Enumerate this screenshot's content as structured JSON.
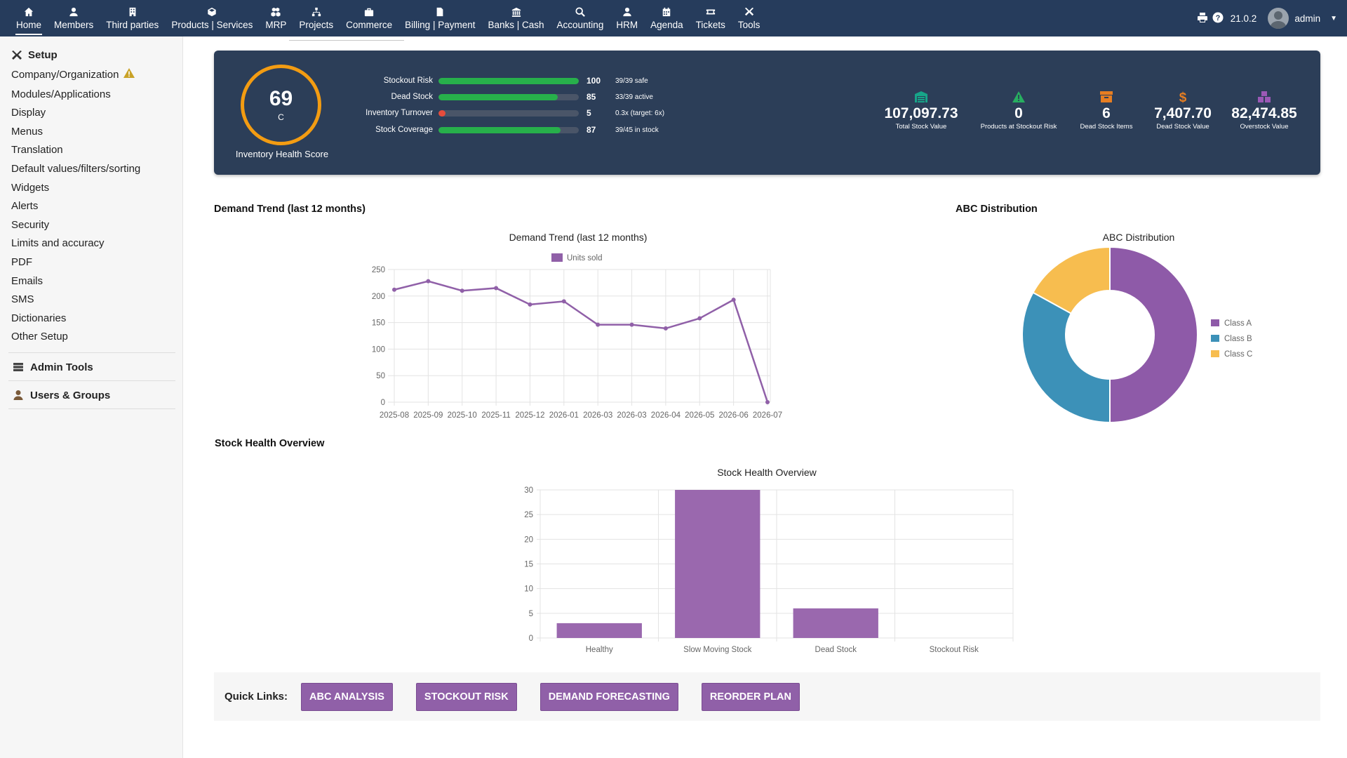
{
  "nav": {
    "items": [
      {
        "label": "Home",
        "icon": "home-icon",
        "active": true
      },
      {
        "label": "Members",
        "icon": "user-icon"
      },
      {
        "label": "Third parties",
        "icon": "building-icon"
      },
      {
        "label": "Products | Services",
        "icon": "cube-icon"
      },
      {
        "label": "MRP",
        "icon": "cubes-icon"
      },
      {
        "label": "Projects",
        "icon": "sitemap-icon"
      },
      {
        "label": "Commerce",
        "icon": "suitcase-icon"
      },
      {
        "label": "Billing | Payment",
        "icon": "file-invoice-icon"
      },
      {
        "label": "Banks | Cash",
        "icon": "bank-icon"
      },
      {
        "label": "Accounting",
        "icon": "search-dollar-icon"
      },
      {
        "label": "HRM",
        "icon": "user-tie-icon"
      },
      {
        "label": "Agenda",
        "icon": "calendar-icon"
      },
      {
        "label": "Tickets",
        "icon": "ticket-icon"
      },
      {
        "label": "Tools",
        "icon": "tools-icon"
      }
    ],
    "version": "21.0.2",
    "user": "admin"
  },
  "sidebar": {
    "setup_title": "Setup",
    "links": [
      "Company/Organization",
      "Modules/Applications",
      "Display",
      "Menus",
      "Translation",
      "Default values/filters/sorting",
      "Widgets",
      "Alerts",
      "Security",
      "Limits and accuracy",
      "PDF",
      "Emails",
      "SMS",
      "Dictionaries",
      "Other Setup"
    ],
    "admin_tools": "Admin Tools",
    "users_groups": "Users & Groups"
  },
  "health": {
    "score": "69",
    "grade": "C",
    "score_label": "Inventory Health Score",
    "ring_color": "#f39c12",
    "metrics": [
      {
        "name": "Stockout Risk",
        "value": "100",
        "fraction": 1.0,
        "note": "39/39 safe",
        "color": "#27b04b"
      },
      {
        "name": "Dead Stock",
        "value": "85",
        "fraction": 0.85,
        "note": "33/39 active",
        "color": "#27b04b"
      },
      {
        "name": "Inventory Turnover",
        "value": "5",
        "fraction": 0.05,
        "note": "0.3x (target: 6x)",
        "color": "#e74c3c"
      },
      {
        "name": "Stock Coverage",
        "value": "87",
        "fraction": 0.87,
        "note": "39/45 in stock",
        "color": "#27b04b"
      }
    ],
    "stats": [
      {
        "value": "107,097.73",
        "label": "Total Stock Value",
        "icon": "warehouse-icon",
        "color": "#17a589"
      },
      {
        "value": "0",
        "label": "Products at Stockout Risk",
        "icon": "warning-icon",
        "color": "#27ae60"
      },
      {
        "value": "6",
        "label": "Dead Stock Items",
        "icon": "archive-icon",
        "color": "#e67e22"
      },
      {
        "value": "7,407.70",
        "label": "Dead Stock Value",
        "icon": "dollar-icon",
        "color": "#e67e22"
      },
      {
        "value": "82,474.85",
        "label": "Overstock Value",
        "icon": "boxes-icon",
        "color": "#9b59b6"
      }
    ]
  },
  "sections": {
    "demand": "Demand Trend (last 12 months)",
    "abc": "ABC Distribution",
    "stock_health": "Stock Health Overview"
  },
  "chart_data": [
    {
      "type": "line",
      "title": "Demand Trend (last 12 months)",
      "x": [
        "2025-08",
        "2025-09",
        "2025-10",
        "2025-11",
        "2025-12",
        "2026-01",
        "2026-03",
        "2026-03",
        "2026-04",
        "2026-05",
        "2026-06",
        "2026-07"
      ],
      "series": [
        {
          "name": "Units sold",
          "values": [
            212,
            228,
            210,
            215,
            184,
            190,
            146,
            146,
            139,
            158,
            193,
            0
          ],
          "color": "#9060a8"
        }
      ],
      "ylim": [
        0,
        250
      ],
      "yticks": [
        0,
        50,
        100,
        150,
        200,
        250
      ],
      "grid": true,
      "legend": "top"
    },
    {
      "type": "pie",
      "title": "ABC Distribution",
      "categories": [
        "Class A",
        "Class B",
        "Class C"
      ],
      "values": [
        50,
        33,
        17
      ],
      "colors": [
        "#8e5aa8",
        "#3c91b8",
        "#f7bd4f"
      ],
      "legend": "right",
      "donut": true
    },
    {
      "type": "bar",
      "title": "Stock Health Overview",
      "categories": [
        "Healthy",
        "Slow Moving Stock",
        "Dead Stock",
        "Stockout Risk"
      ],
      "values": [
        3,
        30,
        6,
        0
      ],
      "ylim": [
        0,
        30
      ],
      "yticks": [
        0,
        5,
        10,
        15,
        20,
        25,
        30
      ],
      "color": "#9a68ae",
      "grid": true
    }
  ],
  "quick_links": {
    "label": "Quick Links:",
    "buttons": [
      "ABC ANALYSIS",
      "STOCKOUT RISK",
      "DEMAND FORECASTING",
      "REORDER PLAN"
    ]
  }
}
